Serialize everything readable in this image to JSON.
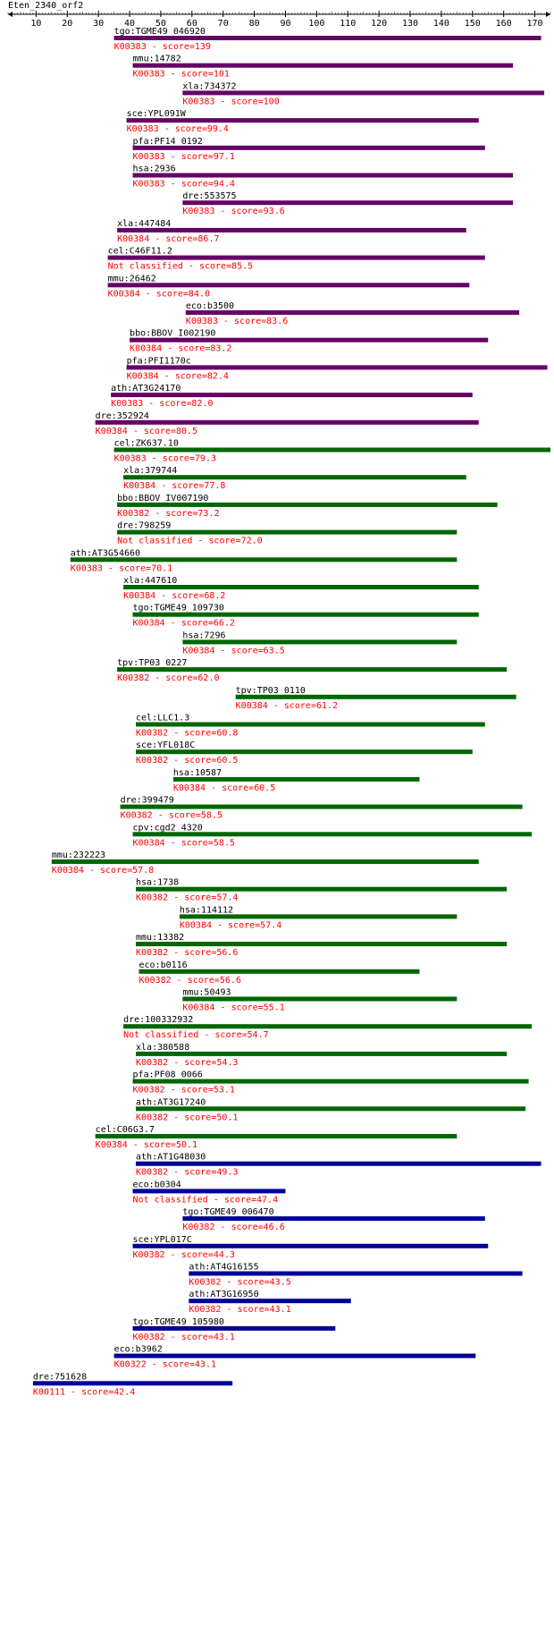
{
  "title": "Eten_2340_orf2",
  "axis": {
    "min": 1,
    "max": 175,
    "ticks": [
      10,
      20,
      30,
      40,
      50,
      60,
      70,
      80,
      90,
      100,
      110,
      120,
      130,
      140,
      150,
      160,
      170
    ]
  },
  "colors": {
    "purple": "#660066",
    "green": "#006600",
    "blue": "#000099",
    "label": "#000000",
    "detail": "#ff0000"
  },
  "hits": [
    {
      "name": "tgo:TGME49_046920",
      "detail": "K00383 - score=139",
      "start": 35,
      "end": 172,
      "color": "purple"
    },
    {
      "name": "mmu:14782",
      "detail": "K00383 - score=101",
      "start": 41,
      "end": 163,
      "color": "purple"
    },
    {
      "name": "xla:734372",
      "detail": "K00383 - score=100",
      "start": 57,
      "end": 173,
      "color": "purple"
    },
    {
      "name": "sce:YPL091W",
      "detail": "K00383 - score=99.4",
      "start": 39,
      "end": 152,
      "color": "purple"
    },
    {
      "name": "pfa:PF14_0192",
      "detail": "K00383 - score=97.1",
      "start": 41,
      "end": 154,
      "color": "purple"
    },
    {
      "name": "hsa:2936",
      "detail": "K00383 - score=94.4",
      "start": 41,
      "end": 163,
      "color": "purple"
    },
    {
      "name": "dre:553575",
      "detail": "K00383 - score=93.6",
      "start": 57,
      "end": 163,
      "color": "purple"
    },
    {
      "name": "xla:447484",
      "detail": "K00384 - score=86.7",
      "start": 36,
      "end": 148,
      "color": "purple"
    },
    {
      "name": "cel:C46F11.2",
      "detail": "Not classified - score=85.5",
      "start": 33,
      "end": 154,
      "color": "purple"
    },
    {
      "name": "mmu:26462",
      "detail": "K00384 - score=84.0",
      "start": 33,
      "end": 149,
      "color": "purple"
    },
    {
      "name": "eco:b3500",
      "detail": "K00383 - score=83.6",
      "start": 58,
      "end": 165,
      "color": "purple"
    },
    {
      "name": "bbo:BBOV_I002190",
      "detail": "K00384 - score=83.2",
      "start": 40,
      "end": 155,
      "color": "purple"
    },
    {
      "name": "pfa:PFI1170c",
      "detail": "K00384 - score=82.4",
      "start": 39,
      "end": 174,
      "color": "purple"
    },
    {
      "name": "ath:AT3G24170",
      "detail": "K00383 - score=82.0",
      "start": 34,
      "end": 150,
      "color": "purple"
    },
    {
      "name": "dre:352924",
      "detail": "K00384 - score=80.5",
      "start": 29,
      "end": 152,
      "color": "purple"
    },
    {
      "name": "cel:ZK637.10",
      "detail": "K00383 - score=79.3",
      "start": 35,
      "end": 175,
      "color": "green"
    },
    {
      "name": "xla:379744",
      "detail": "K00384 - score=77.8",
      "start": 38,
      "end": 148,
      "color": "green"
    },
    {
      "name": "bbo:BBOV_IV007190",
      "detail": "K00382 - score=73.2",
      "start": 36,
      "end": 158,
      "color": "green"
    },
    {
      "name": "dre:798259",
      "detail": "Not classified - score=72.0",
      "start": 36,
      "end": 145,
      "color": "green"
    },
    {
      "name": "ath:AT3G54660",
      "detail": "K00383 - score=70.1",
      "start": 21,
      "end": 145,
      "color": "green"
    },
    {
      "name": "xla:447610",
      "detail": "K00384 - score=68.2",
      "start": 38,
      "end": 152,
      "color": "green"
    },
    {
      "name": "tgo:TGME49_109730",
      "detail": "K00384 - score=66.2",
      "start": 41,
      "end": 152,
      "color": "green"
    },
    {
      "name": "hsa:7296",
      "detail": "K00384 - score=63.5",
      "start": 57,
      "end": 145,
      "color": "green"
    },
    {
      "name": "tpv:TP03_0227",
      "detail": "K00382 - score=62.0",
      "start": 36,
      "end": 161,
      "color": "green"
    },
    {
      "name": "tpv:TP03_0110",
      "detail": "K00384 - score=61.2",
      "start": 74,
      "end": 164,
      "color": "green"
    },
    {
      "name": "cel:LLC1.3",
      "detail": "K00382 - score=60.8",
      "start": 42,
      "end": 154,
      "color": "green"
    },
    {
      "name": "sce:YFL018C",
      "detail": "K00382 - score=60.5",
      "start": 42,
      "end": 150,
      "color": "green"
    },
    {
      "name": "hsa:10587",
      "detail": "K00384 - score=60.5",
      "start": 54,
      "end": 133,
      "color": "green"
    },
    {
      "name": "dre:399479",
      "detail": "K00382 - score=58.5",
      "start": 37,
      "end": 166,
      "color": "green"
    },
    {
      "name": "cpv:cgd2_4320",
      "detail": "K00384 - score=58.5",
      "start": 41,
      "end": 169,
      "color": "green"
    },
    {
      "name": "mmu:232223",
      "detail": "K00384 - score=57.8",
      "start": 15,
      "end": 152,
      "color": "green"
    },
    {
      "name": "hsa:1738",
      "detail": "K00382 - score=57.4",
      "start": 42,
      "end": 161,
      "color": "green"
    },
    {
      "name": "hsa:114112",
      "detail": "K00384 - score=57.4",
      "start": 56,
      "end": 145,
      "color": "green"
    },
    {
      "name": "mmu:13382",
      "detail": "K00382 - score=56.6",
      "start": 42,
      "end": 161,
      "color": "green"
    },
    {
      "name": "eco:b0116",
      "detail": "K00382 - score=56.6",
      "start": 43,
      "end": 133,
      "color": "green"
    },
    {
      "name": "mmu:50493",
      "detail": "K00384 - score=55.1",
      "start": 57,
      "end": 145,
      "color": "green"
    },
    {
      "name": "dre:100332932",
      "detail": "Not classified - score=54.7",
      "start": 38,
      "end": 169,
      "color": "green"
    },
    {
      "name": "xla:380588",
      "detail": "K00382 - score=54.3",
      "start": 42,
      "end": 161,
      "color": "green"
    },
    {
      "name": "pfa:PF08_0066",
      "detail": "K00382 - score=53.1",
      "start": 41,
      "end": 168,
      "color": "green"
    },
    {
      "name": "ath:AT3G17240",
      "detail": "K00382 - score=50.1",
      "start": 42,
      "end": 167,
      "color": "green"
    },
    {
      "name": "cel:C06G3.7",
      "detail": "K00384 - score=50.1",
      "start": 29,
      "end": 145,
      "color": "green"
    },
    {
      "name": "ath:AT1G48030",
      "detail": "K00382 - score=49.3",
      "start": 42,
      "end": 172,
      "color": "blue"
    },
    {
      "name": "eco:b0304",
      "detail": "Not classified - score=47.4",
      "start": 41,
      "end": 90,
      "color": "blue"
    },
    {
      "name": "tgo:TGME49_006470",
      "detail": "K00382 - score=46.6",
      "start": 57,
      "end": 154,
      "color": "blue"
    },
    {
      "name": "sce:YPL017C",
      "detail": "K00382 - score=44.3",
      "start": 41,
      "end": 155,
      "color": "blue"
    },
    {
      "name": "ath:AT4G16155",
      "detail": "K00382 - score=43.5",
      "start": 59,
      "end": 166,
      "color": "blue"
    },
    {
      "name": "ath:AT3G16950",
      "detail": "K00382 - score=43.1",
      "start": 59,
      "end": 111,
      "color": "blue"
    },
    {
      "name": "tgo:TGME49_105980",
      "detail": "K00382 - score=43.1",
      "start": 41,
      "end": 106,
      "color": "blue"
    },
    {
      "name": "eco:b3962",
      "detail": "K00322 - score=43.1",
      "start": 35,
      "end": 151,
      "color": "blue"
    },
    {
      "name": "dre:751628",
      "detail": "K00111 - score=42.4",
      "start": 9,
      "end": 73,
      "color": "blue"
    }
  ]
}
